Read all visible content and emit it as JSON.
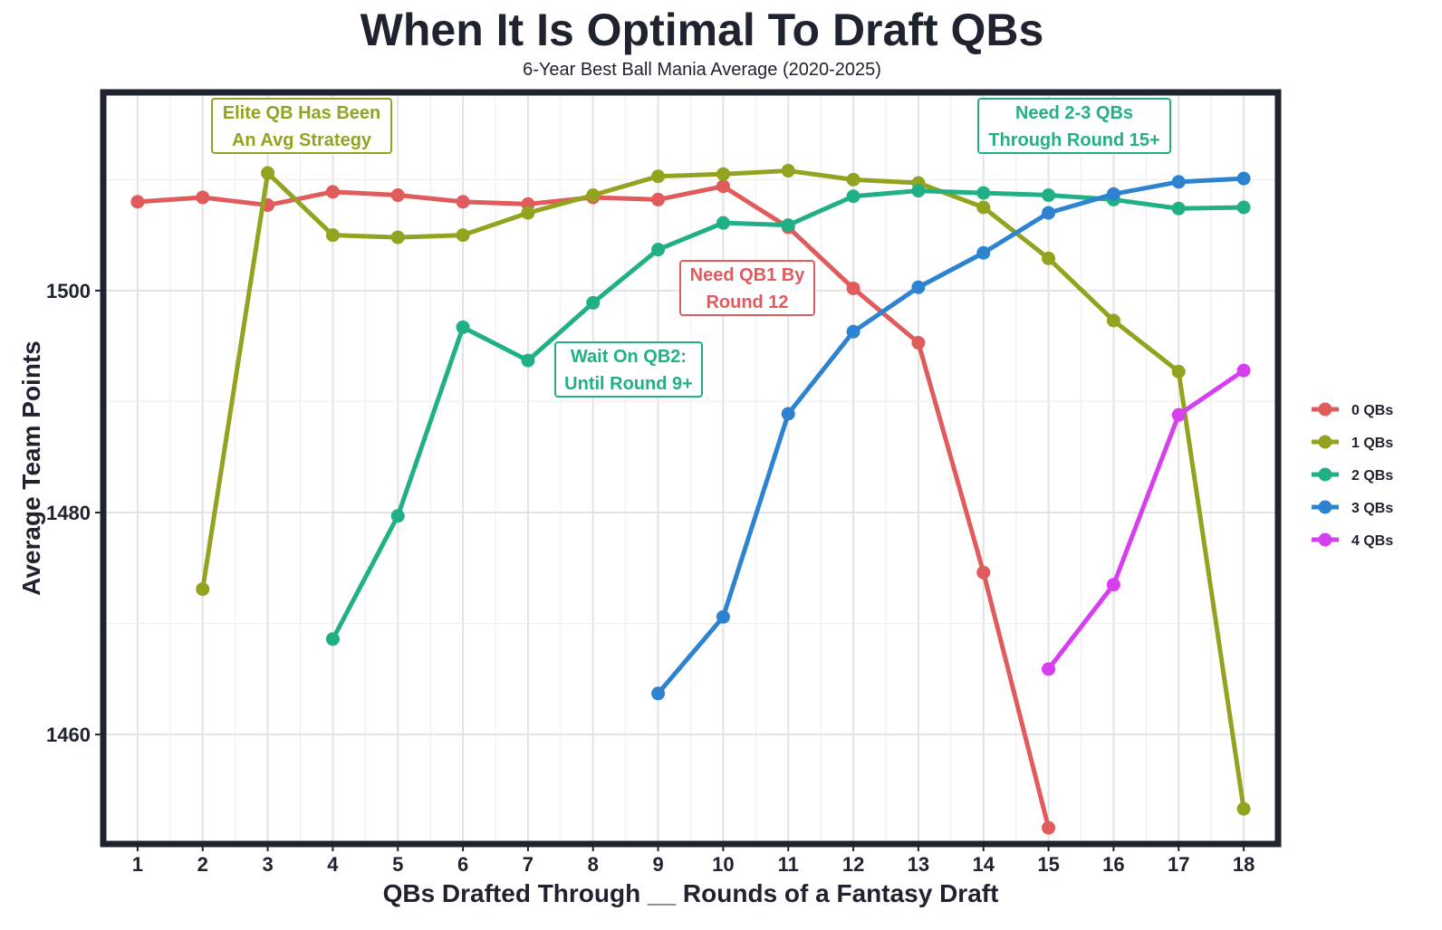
{
  "chart_data": {
    "type": "line",
    "title": "When It Is Optimal To Draft QBs",
    "subtitle": "6-Year Best Ball Mania Average (2020-2025)",
    "xlabel": "QBs Drafted Through __ Rounds of a Fantasy Draft",
    "ylabel": "Average Team Points",
    "x": [
      1,
      2,
      3,
      4,
      5,
      6,
      7,
      8,
      9,
      10,
      11,
      12,
      13,
      14,
      15,
      16,
      17,
      18
    ],
    "xlim": [
      0.5,
      18.5
    ],
    "ylim": [
      1450.3,
      1517.7
    ],
    "y_ticks": [
      1460,
      1480,
      1500
    ],
    "grid": true,
    "legend_position": "right",
    "series": [
      {
        "name": "0 QBs",
        "color": "#e05b5b",
        "values": [
          1508.0,
          1508.4,
          1507.7,
          1508.9,
          1508.6,
          1508.0,
          1507.8,
          1508.4,
          1508.2,
          1509.4,
          1505.7,
          1500.2,
          1495.3,
          1474.6,
          1451.6,
          null,
          null,
          null
        ]
      },
      {
        "name": "1 QBs",
        "color": "#93a31f",
        "values": [
          null,
          1473.1,
          1510.6,
          1505.0,
          1504.8,
          1505.0,
          1507.0,
          1508.6,
          1510.3,
          1510.5,
          1510.8,
          1510.0,
          1509.7,
          1507.5,
          1502.9,
          1497.3,
          1492.7,
          1453.3
        ]
      },
      {
        "name": "2 QBs",
        "color": "#21b085",
        "values": [
          null,
          null,
          null,
          1468.6,
          1479.7,
          1496.7,
          1493.7,
          1498.9,
          1503.7,
          1506.1,
          1505.9,
          1508.5,
          1509.0,
          1508.8,
          1508.6,
          1508.2,
          1507.4,
          1507.5
        ]
      },
      {
        "name": "3 QBs",
        "color": "#2e83d1",
        "values": [
          null,
          null,
          null,
          null,
          null,
          null,
          null,
          null,
          1463.7,
          1470.6,
          1488.9,
          1496.3,
          1500.3,
          1503.4,
          1507.0,
          1508.7,
          1509.8,
          1510.1
        ]
      },
      {
        "name": "4 QBs",
        "color": "#d63fef",
        "values": [
          null,
          null,
          null,
          null,
          null,
          null,
          null,
          null,
          null,
          null,
          null,
          null,
          null,
          null,
          1465.9,
          1473.5,
          1488.8,
          1492.8
        ]
      }
    ],
    "annotations": [
      {
        "lines": [
          "Elite QB Has Been",
          "An Avg Strategy"
        ],
        "color": "#93a31f"
      },
      {
        "lines": [
          "Need 2-3 QBs",
          "Through Round 15+"
        ],
        "color": "#21b085"
      },
      {
        "lines": [
          "Need QB1 By",
          "Round 12"
        ],
        "color": "#e05b5b"
      },
      {
        "lines": [
          "Wait On QB2:",
          "Until Round 9+"
        ],
        "color": "#21b085"
      }
    ]
  }
}
